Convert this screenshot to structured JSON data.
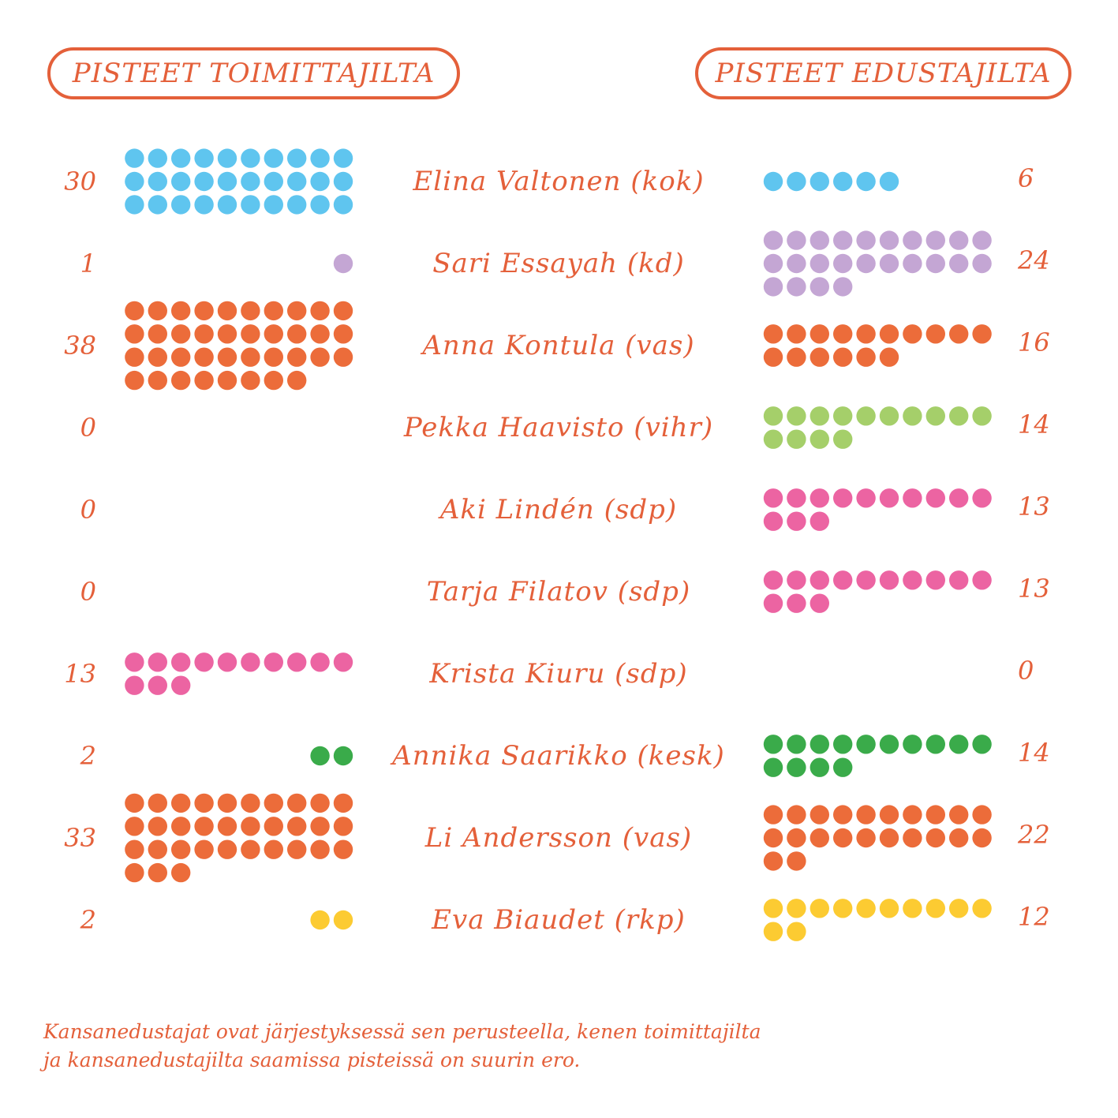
{
  "header": {
    "left_label": "PISTEET TOIMITTAJILTA",
    "right_label": "PISTEET EDUSTAJILTA"
  },
  "footnote": {
    "line1": "Kansanedustajat ovat järjestyksessä sen perusteella, kenen toimittajilta",
    "line2": "ja kansanedustajilta saamissa pisteissä on suurin ero."
  },
  "chart_data": {
    "type": "dot-count",
    "title": "",
    "series": [
      {
        "name": "PISTEET TOIMITTAJILTA",
        "key": "journalists"
      },
      {
        "name": "PISTEET EDUSTAJILTA",
        "key": "mps"
      }
    ],
    "rows": [
      {
        "label": "Elina Valtonen (kok)",
        "journalists": 30,
        "mps": 6,
        "color": "#5fc5ef"
      },
      {
        "label": "Sari Essayah (kd)",
        "journalists": 1,
        "mps": 24,
        "color": "#c4a6d4"
      },
      {
        "label": "Anna Kontula (vas)",
        "journalists": 38,
        "mps": 16,
        "color": "#ec6c3a"
      },
      {
        "label": "Pekka Haavisto (vihr)",
        "journalists": 0,
        "mps": 14,
        "color": "#a5cf6a"
      },
      {
        "label": "Aki Lindén (sdp)",
        "journalists": 0,
        "mps": 13,
        "color": "#ec64a2"
      },
      {
        "label": "Tarja Filatov (sdp)",
        "journalists": 0,
        "mps": 13,
        "color": "#ec64a2"
      },
      {
        "label": "Krista Kiuru (sdp)",
        "journalists": 13,
        "mps": 0,
        "color": "#ec64a2"
      },
      {
        "label": "Annika Saarikko (kesk)",
        "journalists": 2,
        "mps": 14,
        "color": "#3aab4a"
      },
      {
        "label": "Li Andersson (vas)",
        "journalists": 33,
        "mps": 22,
        "color": "#ec6c3a"
      },
      {
        "label": "Eva Biaudet (rkp)",
        "journalists": 2,
        "mps": 12,
        "color": "#fccb32"
      }
    ]
  }
}
